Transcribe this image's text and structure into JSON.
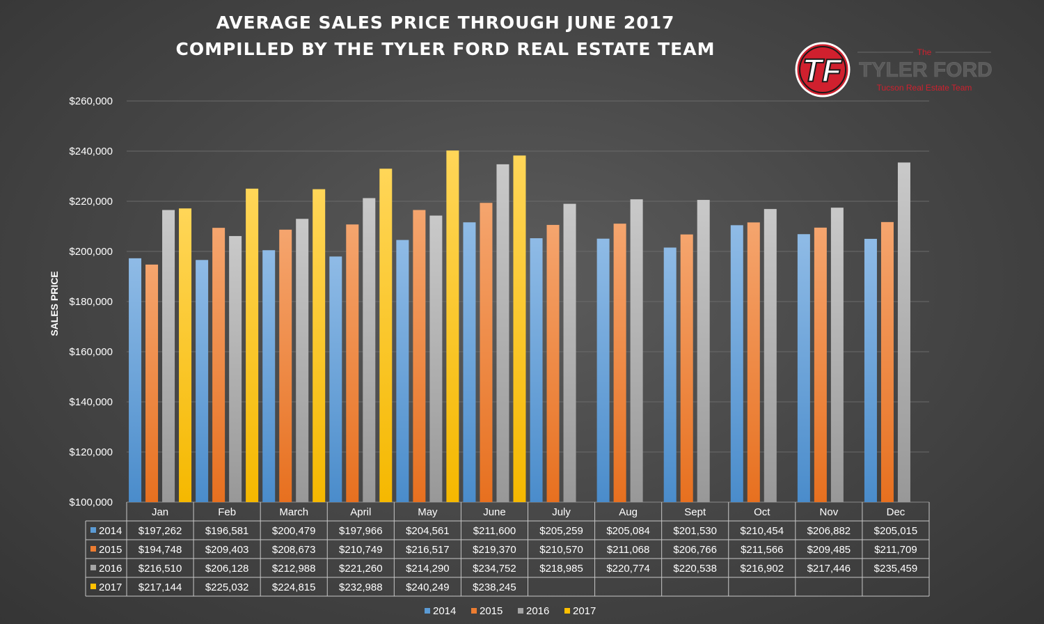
{
  "title_line1": "AVERAGE SALES PRICE THROUGH JUNE 2017",
  "title_line2": "COMPILLED BY THE TYLER FORD REAL ESTATE TEAM",
  "logo": {
    "monogram": "TF",
    "prefix": "The",
    "name": "TYLER FORD",
    "tagline": "Tucson Real Estate Team"
  },
  "colors": {
    "2014": "#5b9bd5",
    "2015": "#ed7d31",
    "2016": "#a5a5a5",
    "2017": "#ffc000",
    "logo_red": "#d0202e"
  },
  "chart_data": {
    "type": "bar",
    "ylabel": "SALES PRICE",
    "xlabel": "",
    "ylim": [
      100000,
      260000
    ],
    "yticks": [
      100000,
      120000,
      140000,
      160000,
      180000,
      200000,
      220000,
      240000,
      260000
    ],
    "grid": true,
    "legend_position": "bottom",
    "categories": [
      "Jan",
      "Feb",
      "March",
      "April",
      "May",
      "June",
      "July",
      "Aug",
      "Sept",
      "Oct",
      "Nov",
      "Dec"
    ],
    "series": [
      {
        "name": "2014",
        "values": [
          197262,
          196581,
          200479,
          197966,
          204561,
          211600,
          205259,
          205084,
          201530,
          210454,
          206882,
          205015
        ],
        "labels": [
          "$197,262",
          "$196,581",
          "$200,479",
          "$197,966",
          "$204,561",
          "$211,600",
          "$205,259",
          "$205,084",
          "$201,530",
          "$210,454",
          "$206,882",
          "$205,015"
        ]
      },
      {
        "name": "2015",
        "values": [
          194748,
          209403,
          208673,
          210749,
          216517,
          219370,
          210570,
          211068,
          206766,
          211566,
          209485,
          211709
        ],
        "labels": [
          "$194,748",
          "$209,403",
          "$208,673",
          "$210,749",
          "$216,517",
          "$219,370",
          "$210,570",
          "$211,068",
          "$206,766",
          "$211,566",
          "$209,485",
          "$211,709"
        ]
      },
      {
        "name": "2016",
        "values": [
          216510,
          206128,
          212988,
          221260,
          214290,
          234752,
          218985,
          220774,
          220538,
          216902,
          217446,
          235459
        ],
        "labels": [
          "$216,510",
          "$206,128",
          "$212,988",
          "$221,260",
          "$214,290",
          "$234,752",
          "$218,985",
          "$220,774",
          "$220,538",
          "$216,902",
          "$217,446",
          "$235,459"
        ]
      },
      {
        "name": "2017",
        "values": [
          217144,
          225032,
          224815,
          232988,
          240249,
          238245,
          null,
          null,
          null,
          null,
          null,
          null
        ],
        "labels": [
          "$217,144",
          "$225,032",
          "$224,815",
          "$232,988",
          "$240,249",
          "$238,245",
          "",
          "",
          "",
          "",
          "",
          ""
        ]
      }
    ]
  }
}
